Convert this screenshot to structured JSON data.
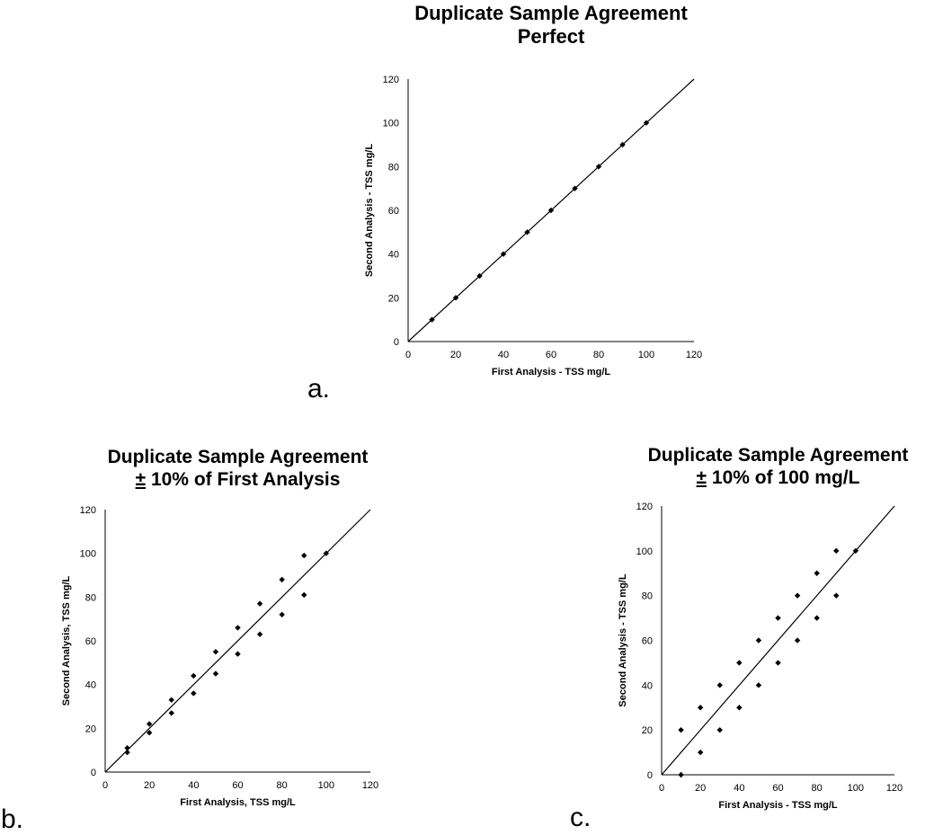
{
  "chart_data": [
    {
      "panel": "a.",
      "type": "scatter",
      "title_lines": [
        "Duplicate Sample Agreement",
        "Perfect"
      ],
      "title_pm": "",
      "xlabel": "First Analysis - TSS mg/L",
      "ylabel": "Second Analysis - TSS mg/L",
      "xlim": [
        0,
        120
      ],
      "ylim": [
        0,
        120
      ],
      "x_ticks": [
        "0",
        "20",
        "40",
        "60",
        "80",
        "100",
        "120"
      ],
      "y_ticks": [
        "0",
        "20",
        "40",
        "60",
        "80",
        "100",
        "120"
      ],
      "grid": false,
      "reference_line": [
        [
          0,
          0
        ],
        [
          120,
          120
        ]
      ],
      "points": [
        [
          10,
          10
        ],
        [
          20,
          20
        ],
        [
          30,
          30
        ],
        [
          40,
          40
        ],
        [
          50,
          50
        ],
        [
          60,
          60
        ],
        [
          70,
          70
        ],
        [
          80,
          80
        ],
        [
          90,
          90
        ],
        [
          100,
          100
        ]
      ]
    },
    {
      "panel": "b.",
      "type": "scatter",
      "title_lines": [
        "Duplicate Sample Agreement",
        "10% of First Analysis"
      ],
      "title_pm": "±",
      "xlabel": "First Analysis, TSS mg/L",
      "ylabel": "Second Analysis, TSS mg/L",
      "xlim": [
        0,
        120
      ],
      "ylim": [
        0,
        120
      ],
      "x_ticks": [
        "0",
        "20",
        "40",
        "60",
        "80",
        "100",
        "120"
      ],
      "y_ticks": [
        "0",
        "20",
        "40",
        "60",
        "80",
        "100",
        "120"
      ],
      "grid": false,
      "reference_line": [
        [
          0,
          0
        ],
        [
          120,
          120
        ]
      ],
      "points": [
        [
          10,
          11
        ],
        [
          10,
          9
        ],
        [
          20,
          22
        ],
        [
          20,
          18
        ],
        [
          30,
          33
        ],
        [
          30,
          27
        ],
        [
          40,
          44
        ],
        [
          40,
          36
        ],
        [
          50,
          55
        ],
        [
          50,
          45
        ],
        [
          60,
          66
        ],
        [
          60,
          54
        ],
        [
          70,
          77
        ],
        [
          70,
          63
        ],
        [
          80,
          88
        ],
        [
          80,
          72
        ],
        [
          90,
          99
        ],
        [
          90,
          81
        ],
        [
          100,
          100
        ]
      ]
    },
    {
      "panel": "c.",
      "type": "scatter",
      "title_lines": [
        "Duplicate Sample Agreement",
        "10% of 100 mg/L"
      ],
      "title_pm": "±",
      "xlabel": "First Analysis - TSS mg/L",
      "ylabel": "Second Analysis - TSS mg/L",
      "xlim": [
        0,
        120
      ],
      "ylim": [
        0,
        120
      ],
      "x_ticks": [
        "0",
        "20",
        "40",
        "60",
        "80",
        "100",
        "120"
      ],
      "y_ticks": [
        "0",
        "20",
        "40",
        "60",
        "80",
        "100",
        "120"
      ],
      "grid": false,
      "reference_line": [
        [
          0,
          0
        ],
        [
          120,
          120
        ]
      ],
      "points": [
        [
          10,
          20
        ],
        [
          10,
          0
        ],
        [
          20,
          30
        ],
        [
          20,
          10
        ],
        [
          30,
          40
        ],
        [
          30,
          20
        ],
        [
          40,
          50
        ],
        [
          40,
          30
        ],
        [
          50,
          60
        ],
        [
          50,
          40
        ],
        [
          60,
          70
        ],
        [
          60,
          50
        ],
        [
          70,
          80
        ],
        [
          70,
          60
        ],
        [
          80,
          90
        ],
        [
          80,
          70
        ],
        [
          90,
          100
        ],
        [
          90,
          80
        ],
        [
          100,
          100
        ]
      ]
    }
  ]
}
